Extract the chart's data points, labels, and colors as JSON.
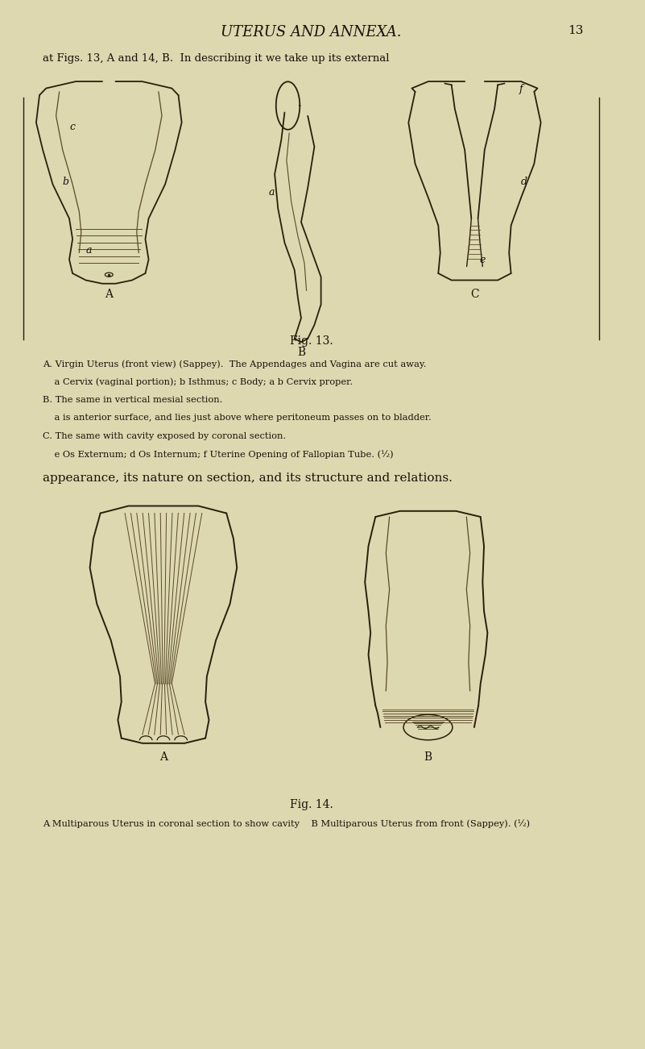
{
  "bg_color": "#e8e0c0",
  "page_color": "#ddd8b0",
  "text_color": "#1a1008",
  "title": "UTERUS AND ANNEXA.",
  "page_number": "13",
  "header_text": "at Figs. 13, A and 14, B.  In describing it we take up its external",
  "fig13_caption": "Fig. 13.",
  "fig13_A_desc": "A. Virgin Uterus (front view) (Sappey).  The Appendages and Vagina are cut away.",
  "fig13_A_desc2": "    a Cervix (vaginal portion); b Isthmus; c Body; a b Cervix proper.",
  "fig13_B_desc": "B. The same in vertical mesial section.",
  "fig13_B_desc2": "    a is anterior surface, and lies just above where peritoneum passes on to bladder.",
  "fig13_C_desc": "C. The same with cavity exposed by coronal section.",
  "fig13_C_desc2": "    e Os Externum; d Os Internum; f Uterine Opening of Fallopian Tube. (½)",
  "middle_text": "appearance, its nature on section, and its structure and relations.",
  "fig14_caption": "Fig. 14.",
  "fig14_A_desc": "A Multiparous Uterus in coronal section to show cavity",
  "fig14_B_desc": "B Multiparous Uterus from front (Sappey). (½)",
  "line_color": "#2a1f0a",
  "light_line_color": "#5a4a2a"
}
